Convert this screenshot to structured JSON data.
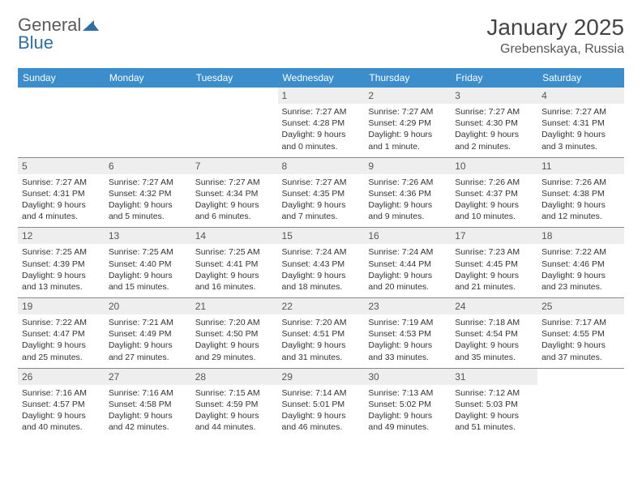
{
  "brand": {
    "part1": "General",
    "part2": "Blue"
  },
  "title": "January 2025",
  "location": "Grebenskaya, Russia",
  "colors": {
    "header_bg": "#3c8dcc",
    "header_text": "#ffffff",
    "daynum_bg": "#eeeeee",
    "text": "#333333",
    "border": "#888888"
  },
  "weekdays": [
    "Sunday",
    "Monday",
    "Tuesday",
    "Wednesday",
    "Thursday",
    "Friday",
    "Saturday"
  ],
  "weeks": [
    [
      {
        "n": "",
        "sr": "",
        "ss": "",
        "dl": ""
      },
      {
        "n": "",
        "sr": "",
        "ss": "",
        "dl": ""
      },
      {
        "n": "",
        "sr": "",
        "ss": "",
        "dl": ""
      },
      {
        "n": "1",
        "sr": "Sunrise: 7:27 AM",
        "ss": "Sunset: 4:28 PM",
        "dl": "Daylight: 9 hours and 0 minutes."
      },
      {
        "n": "2",
        "sr": "Sunrise: 7:27 AM",
        "ss": "Sunset: 4:29 PM",
        "dl": "Daylight: 9 hours and 1 minute."
      },
      {
        "n": "3",
        "sr": "Sunrise: 7:27 AM",
        "ss": "Sunset: 4:30 PM",
        "dl": "Daylight: 9 hours and 2 minutes."
      },
      {
        "n": "4",
        "sr": "Sunrise: 7:27 AM",
        "ss": "Sunset: 4:31 PM",
        "dl": "Daylight: 9 hours and 3 minutes."
      }
    ],
    [
      {
        "n": "5",
        "sr": "Sunrise: 7:27 AM",
        "ss": "Sunset: 4:31 PM",
        "dl": "Daylight: 9 hours and 4 minutes."
      },
      {
        "n": "6",
        "sr": "Sunrise: 7:27 AM",
        "ss": "Sunset: 4:32 PM",
        "dl": "Daylight: 9 hours and 5 minutes."
      },
      {
        "n": "7",
        "sr": "Sunrise: 7:27 AM",
        "ss": "Sunset: 4:34 PM",
        "dl": "Daylight: 9 hours and 6 minutes."
      },
      {
        "n": "8",
        "sr": "Sunrise: 7:27 AM",
        "ss": "Sunset: 4:35 PM",
        "dl": "Daylight: 9 hours and 7 minutes."
      },
      {
        "n": "9",
        "sr": "Sunrise: 7:26 AM",
        "ss": "Sunset: 4:36 PM",
        "dl": "Daylight: 9 hours and 9 minutes."
      },
      {
        "n": "10",
        "sr": "Sunrise: 7:26 AM",
        "ss": "Sunset: 4:37 PM",
        "dl": "Daylight: 9 hours and 10 minutes."
      },
      {
        "n": "11",
        "sr": "Sunrise: 7:26 AM",
        "ss": "Sunset: 4:38 PM",
        "dl": "Daylight: 9 hours and 12 minutes."
      }
    ],
    [
      {
        "n": "12",
        "sr": "Sunrise: 7:25 AM",
        "ss": "Sunset: 4:39 PM",
        "dl": "Daylight: 9 hours and 13 minutes."
      },
      {
        "n": "13",
        "sr": "Sunrise: 7:25 AM",
        "ss": "Sunset: 4:40 PM",
        "dl": "Daylight: 9 hours and 15 minutes."
      },
      {
        "n": "14",
        "sr": "Sunrise: 7:25 AM",
        "ss": "Sunset: 4:41 PM",
        "dl": "Daylight: 9 hours and 16 minutes."
      },
      {
        "n": "15",
        "sr": "Sunrise: 7:24 AM",
        "ss": "Sunset: 4:43 PM",
        "dl": "Daylight: 9 hours and 18 minutes."
      },
      {
        "n": "16",
        "sr": "Sunrise: 7:24 AM",
        "ss": "Sunset: 4:44 PM",
        "dl": "Daylight: 9 hours and 20 minutes."
      },
      {
        "n": "17",
        "sr": "Sunrise: 7:23 AM",
        "ss": "Sunset: 4:45 PM",
        "dl": "Daylight: 9 hours and 21 minutes."
      },
      {
        "n": "18",
        "sr": "Sunrise: 7:22 AM",
        "ss": "Sunset: 4:46 PM",
        "dl": "Daylight: 9 hours and 23 minutes."
      }
    ],
    [
      {
        "n": "19",
        "sr": "Sunrise: 7:22 AM",
        "ss": "Sunset: 4:47 PM",
        "dl": "Daylight: 9 hours and 25 minutes."
      },
      {
        "n": "20",
        "sr": "Sunrise: 7:21 AM",
        "ss": "Sunset: 4:49 PM",
        "dl": "Daylight: 9 hours and 27 minutes."
      },
      {
        "n": "21",
        "sr": "Sunrise: 7:20 AM",
        "ss": "Sunset: 4:50 PM",
        "dl": "Daylight: 9 hours and 29 minutes."
      },
      {
        "n": "22",
        "sr": "Sunrise: 7:20 AM",
        "ss": "Sunset: 4:51 PM",
        "dl": "Daylight: 9 hours and 31 minutes."
      },
      {
        "n": "23",
        "sr": "Sunrise: 7:19 AM",
        "ss": "Sunset: 4:53 PM",
        "dl": "Daylight: 9 hours and 33 minutes."
      },
      {
        "n": "24",
        "sr": "Sunrise: 7:18 AM",
        "ss": "Sunset: 4:54 PM",
        "dl": "Daylight: 9 hours and 35 minutes."
      },
      {
        "n": "25",
        "sr": "Sunrise: 7:17 AM",
        "ss": "Sunset: 4:55 PM",
        "dl": "Daylight: 9 hours and 37 minutes."
      }
    ],
    [
      {
        "n": "26",
        "sr": "Sunrise: 7:16 AM",
        "ss": "Sunset: 4:57 PM",
        "dl": "Daylight: 9 hours and 40 minutes."
      },
      {
        "n": "27",
        "sr": "Sunrise: 7:16 AM",
        "ss": "Sunset: 4:58 PM",
        "dl": "Daylight: 9 hours and 42 minutes."
      },
      {
        "n": "28",
        "sr": "Sunrise: 7:15 AM",
        "ss": "Sunset: 4:59 PM",
        "dl": "Daylight: 9 hours and 44 minutes."
      },
      {
        "n": "29",
        "sr": "Sunrise: 7:14 AM",
        "ss": "Sunset: 5:01 PM",
        "dl": "Daylight: 9 hours and 46 minutes."
      },
      {
        "n": "30",
        "sr": "Sunrise: 7:13 AM",
        "ss": "Sunset: 5:02 PM",
        "dl": "Daylight: 9 hours and 49 minutes."
      },
      {
        "n": "31",
        "sr": "Sunrise: 7:12 AM",
        "ss": "Sunset: 5:03 PM",
        "dl": "Daylight: 9 hours and 51 minutes."
      },
      {
        "n": "",
        "sr": "",
        "ss": "",
        "dl": ""
      }
    ]
  ]
}
